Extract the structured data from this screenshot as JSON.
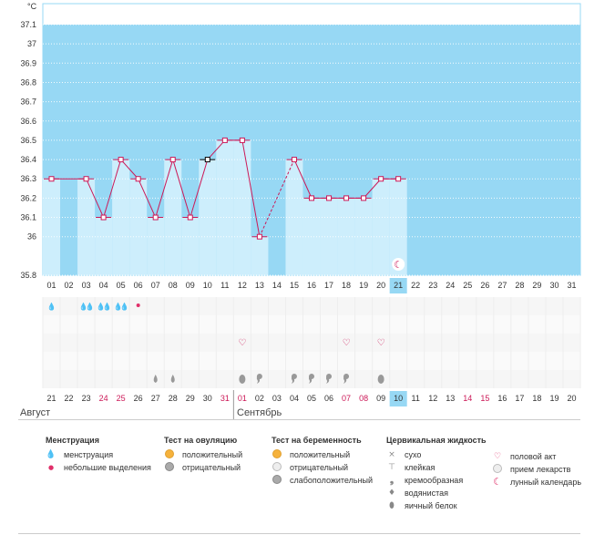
{
  "chart_data": {
    "type": "line",
    "unit_label": "°C",
    "y_ticks": [
      "37.1",
      "37",
      "36.9",
      "36.8",
      "36.7",
      "36.6",
      "36.5",
      "36.4",
      "36.3",
      "36.2",
      "36.1",
      "36",
      "35.8"
    ],
    "ylim": [
      35.8,
      37.1
    ],
    "cycle_days": [
      "01",
      "02",
      "03",
      "04",
      "05",
      "06",
      "07",
      "08",
      "09",
      "10",
      "11",
      "12",
      "13",
      "14",
      "15",
      "16",
      "17",
      "18",
      "19",
      "20",
      "21",
      "22",
      "23",
      "24",
      "25",
      "26",
      "27",
      "28",
      "29",
      "30",
      "31"
    ],
    "dates": [
      "21",
      "22",
      "23",
      "24",
      "25",
      "26",
      "27",
      "28",
      "29",
      "30",
      "31",
      "01",
      "02",
      "03",
      "04",
      "05",
      "06",
      "07",
      "08",
      "09",
      "10",
      "11",
      "12",
      "13",
      "14",
      "15",
      "16",
      "17",
      "18",
      "19",
      "20"
    ],
    "weekend_dates": [
      3,
      4,
      10,
      11,
      17,
      18,
      24,
      25
    ],
    "today_index": 20,
    "temperatures": [
      36.3,
      null,
      36.3,
      36.1,
      36.4,
      36.3,
      36.1,
      36.4,
      36.1,
      36.4,
      36.5,
      36.5,
      36.0,
      null,
      36.4,
      36.2,
      36.2,
      36.2,
      36.2,
      36.3,
      36.3,
      null,
      null,
      null,
      null,
      null,
      null,
      null,
      null,
      null,
      null
    ],
    "dashed_segments": [
      [
        12,
        14
      ]
    ],
    "cursor_index": 9,
    "menstruation": {
      "heavy": [
        0,
        2,
        3,
        4
      ],
      "double": [
        2,
        3,
        4
      ],
      "light": [
        5
      ]
    },
    "intercourse": [
      11,
      17,
      19
    ],
    "cervical_fluid": [
      {
        "day": 6,
        "type": "watery"
      },
      {
        "day": 7,
        "type": "watery"
      },
      {
        "day": 11,
        "type": "eggwhite"
      },
      {
        "day": 12,
        "type": "creamy"
      },
      {
        "day": 14,
        "type": "creamy"
      },
      {
        "day": 15,
        "type": "creamy"
      },
      {
        "day": 16,
        "type": "creamy"
      },
      {
        "day": 17,
        "type": "creamy"
      },
      {
        "day": 19,
        "type": "eggwhite"
      }
    ],
    "lunar_day": 20,
    "month_labels": [
      {
        "text": "Август",
        "start": 0
      },
      {
        "text": "Сентябрь",
        "start": 11
      }
    ]
  },
  "colors": {
    "band": "#97d8f4",
    "bar": "#cdeefc",
    "line": "#cc1857",
    "weekend": "#cc1857",
    "today_box": "#97d8f4"
  },
  "legend": {
    "menstruation": {
      "title": "Менструация",
      "items": [
        "менструация",
        "небольшие выделения"
      ]
    },
    "ovulation": {
      "title": "Тест на овуляцию",
      "items": [
        "положительный",
        "отрицательный"
      ]
    },
    "pregnancy": {
      "title": "Тест на беременность",
      "items": [
        "положительный",
        "отрицательный",
        "слабоположительный"
      ]
    },
    "cervical": {
      "title": "Цервикальная жидкость",
      "items": [
        "сухо",
        "клейкая",
        "кремообразная",
        "водянистая",
        "яичный белок"
      ]
    },
    "other": {
      "items": [
        "половой акт",
        "прием лекарств",
        "лунный календарь"
      ]
    }
  }
}
